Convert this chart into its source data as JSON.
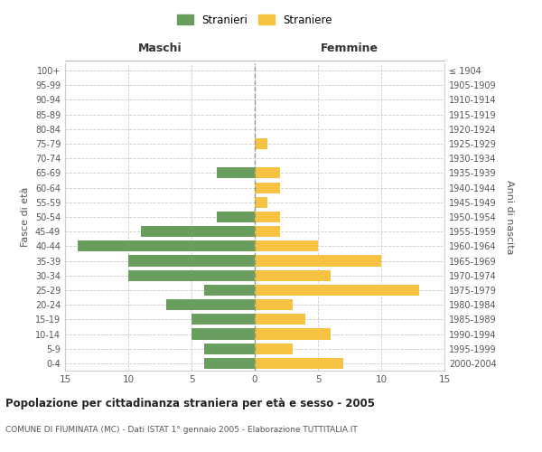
{
  "age_groups": [
    "0-4",
    "5-9",
    "10-14",
    "15-19",
    "20-24",
    "25-29",
    "30-34",
    "35-39",
    "40-44",
    "45-49",
    "50-54",
    "55-59",
    "60-64",
    "65-69",
    "70-74",
    "75-79",
    "80-84",
    "85-89",
    "90-94",
    "95-99",
    "100+"
  ],
  "birth_years": [
    "2000-2004",
    "1995-1999",
    "1990-1994",
    "1985-1989",
    "1980-1984",
    "1975-1979",
    "1970-1974",
    "1965-1969",
    "1960-1964",
    "1955-1959",
    "1950-1954",
    "1945-1949",
    "1940-1944",
    "1935-1939",
    "1930-1934",
    "1925-1929",
    "1920-1924",
    "1915-1919",
    "1910-1914",
    "1905-1909",
    "≤ 1904"
  ],
  "males": [
    4,
    4,
    5,
    5,
    7,
    4,
    10,
    10,
    14,
    9,
    3,
    0,
    0,
    3,
    0,
    0,
    0,
    0,
    0,
    0,
    0
  ],
  "females": [
    7,
    3,
    6,
    4,
    3,
    13,
    6,
    10,
    5,
    2,
    2,
    1,
    2,
    2,
    0,
    1,
    0,
    0,
    0,
    0,
    0
  ],
  "male_color": "#6a9e5e",
  "female_color": "#f5c242",
  "background_color": "#ffffff",
  "grid_color": "#cccccc",
  "title": "Popolazione per cittadinanza straniera per età e sesso - 2005",
  "subtitle": "COMUNE DI FIUMINATA (MC) - Dati ISTAT 1° gennaio 2005 - Elaborazione TUTTITALIA.IT",
  "header_left": "Maschi",
  "header_right": "Femmine",
  "ylabel_left": "Fasce di età",
  "ylabel_right": "Anni di nascita",
  "legend_male": "Stranieri",
  "legend_female": "Straniere",
  "xlim": 15,
  "bar_height": 0.75
}
